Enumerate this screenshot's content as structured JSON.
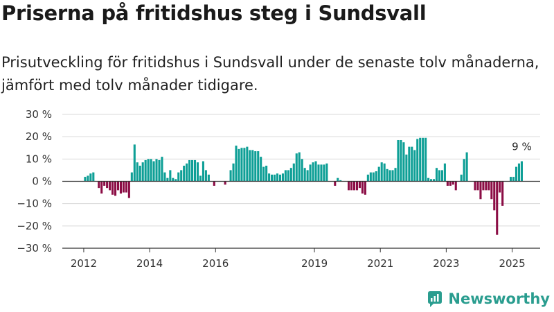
{
  "title": "Priserna på fritidshus steg i Sundsvall",
  "subtitle": "Prisutveckling för fritidshus i Sundsvall under de senaste tolv månaderna, jämfört med tolv månader tidigare.",
  "brand": "Newsworthy",
  "colors": {
    "positive": "#0e9f96",
    "negative": "#8b0d45",
    "axis": "#333333",
    "grid": "#d9d9d9"
  },
  "chart_data": {
    "type": "bar",
    "title": "Priserna på fritidshus steg i Sundsvall",
    "xlabel": "",
    "ylabel": "",
    "ylim": [
      -30,
      30
    ],
    "yticks": [
      -30,
      -20,
      -10,
      0,
      10,
      20,
      30
    ],
    "ytick_labels": [
      "−30 %",
      "−20 %",
      "−10 %",
      "0 %",
      "10 %",
      "20 %",
      "30 %"
    ],
    "xticks": [
      2012,
      2014,
      2016,
      2019,
      2021,
      2023,
      2025
    ],
    "xtick_labels": [
      "2012",
      "2014",
      "2016",
      "2019",
      "2021",
      "2023",
      "2025"
    ],
    "annotation": "9 %",
    "grid": true,
    "series": [
      {
        "start_year": 2012,
        "start_month": 1,
        "values": [
          2,
          2.5,
          3.5,
          4,
          0,
          -3,
          -5.5,
          -2,
          -3,
          -4,
          -6,
          -6.5,
          -4,
          -5.5,
          -5,
          -5,
          -7.5,
          4,
          16.5,
          8.5,
          7,
          8.5,
          9.5,
          10,
          10,
          9,
          10,
          9.5,
          11,
          4,
          1.5,
          5,
          1.5,
          1,
          4,
          5,
          7,
          8,
          9.5,
          9.5,
          9.5,
          8.5,
          2.5,
          9,
          5,
          3,
          0,
          -2,
          0,
          0,
          0,
          -1.5,
          0,
          5,
          8,
          16,
          14.5,
          15,
          15,
          15.5,
          14,
          14,
          13.5,
          13.5,
          11,
          6.5,
          7,
          3.5,
          3,
          3,
          3.5,
          3,
          3.5,
          5,
          5,
          6,
          8,
          12.5,
          13,
          10,
          6,
          5,
          7.5,
          8.5,
          9,
          7.5,
          7.5,
          7.5,
          8,
          0,
          0,
          -2,
          1.5,
          0.5,
          0,
          0,
          -4,
          -4,
          -4,
          -4,
          -3,
          -5.5,
          -6,
          3,
          4,
          4,
          4.5,
          6.5,
          8.5,
          8,
          5.5,
          5,
          5,
          6,
          18.5,
          18.5,
          17.5,
          12,
          15.5,
          15.5,
          14,
          19,
          19.5,
          19.5,
          19.5,
          1.5,
          1,
          1,
          6,
          5,
          5,
          8,
          -2,
          -2,
          -1.5,
          -4,
          0,
          3,
          10,
          13,
          0,
          0,
          -4,
          -4,
          -8,
          -4,
          -4,
          -4,
          -8,
          -13,
          -24,
          -5,
          -11,
          0,
          0,
          2,
          2,
          6.5,
          8,
          9
        ]
      }
    ]
  }
}
